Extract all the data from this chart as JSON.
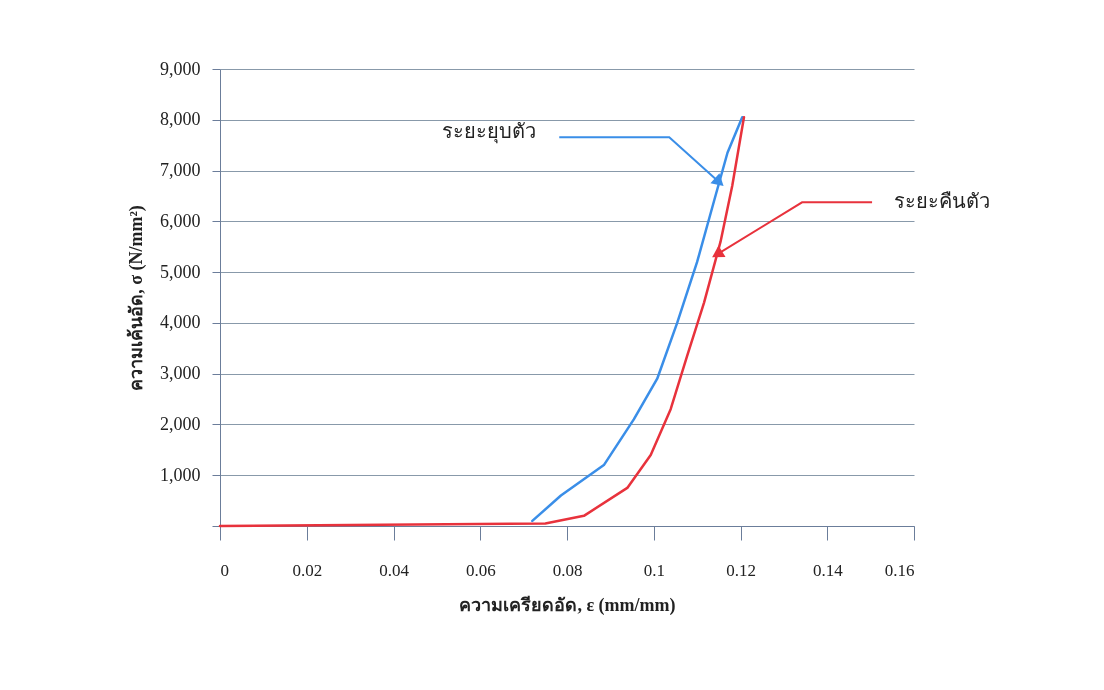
{
  "chart_data": {
    "type": "line",
    "xlabel": "ความเครียดอัด, ε (mm/mm)",
    "ylabel": "ความเค้นอัด, σ (N/mm²)",
    "xlim": [
      0,
      0.16
    ],
    "xticks": [
      0,
      0.02,
      0.04,
      0.06,
      0.08,
      0.1,
      0.12,
      0.14,
      0.16
    ],
    "ylim": [
      0,
      9000
    ],
    "yticks": [
      {
        "value": 0,
        "label": null
      },
      {
        "value": 1000,
        "label": "1,000"
      },
      {
        "value": 2000,
        "label": "2,000"
      },
      {
        "value": 3000,
        "label": "3,000"
      },
      {
        "value": 4000,
        "label": "4,000"
      },
      {
        "value": 5000,
        "label": "5,000"
      },
      {
        "value": 6000,
        "label": "6,000"
      },
      {
        "value": 7000,
        "label": "7,000"
      },
      {
        "value": 8000,
        "label": "8,000"
      },
      {
        "value": 9000,
        "label": "9,000"
      }
    ],
    "grid": "y",
    "marker": "none",
    "line_style": "solid",
    "series": [
      {
        "color": "#3a8ee8",
        "x": [
          0.072,
          0.0786,
          0.0885,
          0.0954,
          0.1008,
          0.1054,
          0.11,
          0.1139,
          0.117,
          0.1204
        ],
        "values": [
          100,
          600,
          1200,
          2100,
          2900,
          4000,
          5200,
          6400,
          7350,
          8050
        ]
      },
      {
        "color": "#e8323c",
        "x": [
          0,
          0.075,
          0.0839,
          0.0939,
          0.0993,
          0.1039,
          0.1077,
          0.1116,
          0.1154,
          0.1181,
          0.1208
        ],
        "values": [
          0,
          50,
          200,
          750,
          1400,
          2300,
          3350,
          4400,
          5600,
          6700,
          8050
        ]
      }
    ],
    "annotations": [
      {
        "text": "ระยะยุบตัว",
        "x": 0.1151,
        "y": 6770
      },
      {
        "text": "ระยะคืนตัว",
        "x": 0.1146,
        "y": 5350
      }
    ]
  }
}
